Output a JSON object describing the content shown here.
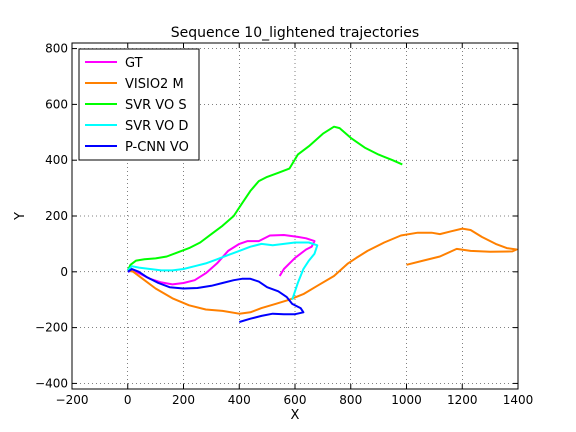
{
  "chart_data": {
    "type": "line",
    "title": "Sequence 10_lightened trajectories",
    "xlabel": "X",
    "ylabel": "Y",
    "xlim": [
      -200,
      1400
    ],
    "ylim": [
      -420,
      820
    ],
    "xticks": [
      -200,
      0,
      200,
      400,
      600,
      800,
      1000,
      1200,
      1400
    ],
    "yticks": [
      -400,
      -200,
      0,
      200,
      400,
      600,
      800
    ],
    "grid": true,
    "legend_position": "top-left",
    "series": [
      {
        "name": "GT",
        "color": "#ff00ff",
        "x": [
          0,
          20,
          50,
          80,
          120,
          160,
          200,
          240,
          280,
          320,
          360,
          400,
          430,
          470,
          510,
          560,
          610,
          640,
          670,
          660,
          640,
          600,
          560,
          545
        ],
        "y": [
          0,
          5,
          -10,
          -25,
          -38,
          -45,
          -40,
          -30,
          -5,
          30,
          75,
          100,
          110,
          110,
          130,
          132,
          125,
          120,
          110,
          90,
          80,
          50,
          10,
          -15
        ]
      },
      {
        "name": "VISIO2 M",
        "color": "#ff8000",
        "x": [
          0,
          20,
          60,
          100,
          160,
          220,
          280,
          340,
          400,
          440,
          480,
          530,
          580,
          630,
          680,
          740,
          790,
          820,
          860,
          920,
          980,
          1040,
          1090,
          1120,
          1160,
          1200,
          1230,
          1270,
          1320,
          1360,
          1395,
          1380,
          1300,
          1230,
          1180,
          1120,
          1060,
          1000
        ],
        "y": [
          5,
          0,
          -30,
          -60,
          -95,
          -120,
          -135,
          -140,
          -150,
          -145,
          -130,
          -115,
          -100,
          -80,
          -50,
          -15,
          30,
          50,
          75,
          105,
          130,
          140,
          140,
          135,
          145,
          155,
          150,
          125,
          100,
          85,
          80,
          73,
          72,
          75,
          82,
          55,
          40,
          25
        ]
      },
      {
        "name": "SVR VO S",
        "color": "#00ff00",
        "x": [
          0,
          10,
          30,
          60,
          100,
          140,
          180,
          220,
          260,
          300,
          340,
          380,
          410,
          440,
          470,
          500,
          540,
          580,
          610,
          650,
          700,
          740,
          760,
          800,
          850,
          900,
          950,
          985
        ],
        "y": [
          5,
          25,
          40,
          45,
          48,
          55,
          70,
          85,
          105,
          135,
          165,
          200,
          245,
          290,
          325,
          340,
          355,
          370,
          420,
          450,
          495,
          520,
          515,
          480,
          445,
          420,
          400,
          385
        ]
      },
      {
        "name": "SVR VO D",
        "color": "#00ffff",
        "x": [
          0,
          15,
          40,
          80,
          120,
          160,
          200,
          240,
          280,
          320,
          360,
          400,
          440,
          480,
          520,
          560,
          600,
          650,
          680,
          670,
          650,
          630,
          610,
          590
        ],
        "y": [
          5,
          20,
          15,
          10,
          5,
          5,
          10,
          20,
          30,
          45,
          60,
          75,
          90,
          100,
          95,
          100,
          105,
          105,
          95,
          65,
          40,
          10,
          -40,
          -100
        ]
      },
      {
        "name": "P-CNN VO",
        "color": "#0000ff",
        "x": [
          0,
          15,
          40,
          70,
          110,
          150,
          200,
          250,
          300,
          340,
          380,
          410,
          440,
          470,
          500,
          540,
          570,
          590,
          620,
          630,
          600,
          560,
          520,
          480,
          440,
          400
        ],
        "y": [
          0,
          10,
          0,
          -20,
          -40,
          -55,
          -60,
          -58,
          -50,
          -40,
          -30,
          -25,
          -25,
          -35,
          -55,
          -70,
          -90,
          -115,
          -130,
          -145,
          -152,
          -152,
          -150,
          -158,
          -168,
          -180
        ]
      }
    ]
  }
}
